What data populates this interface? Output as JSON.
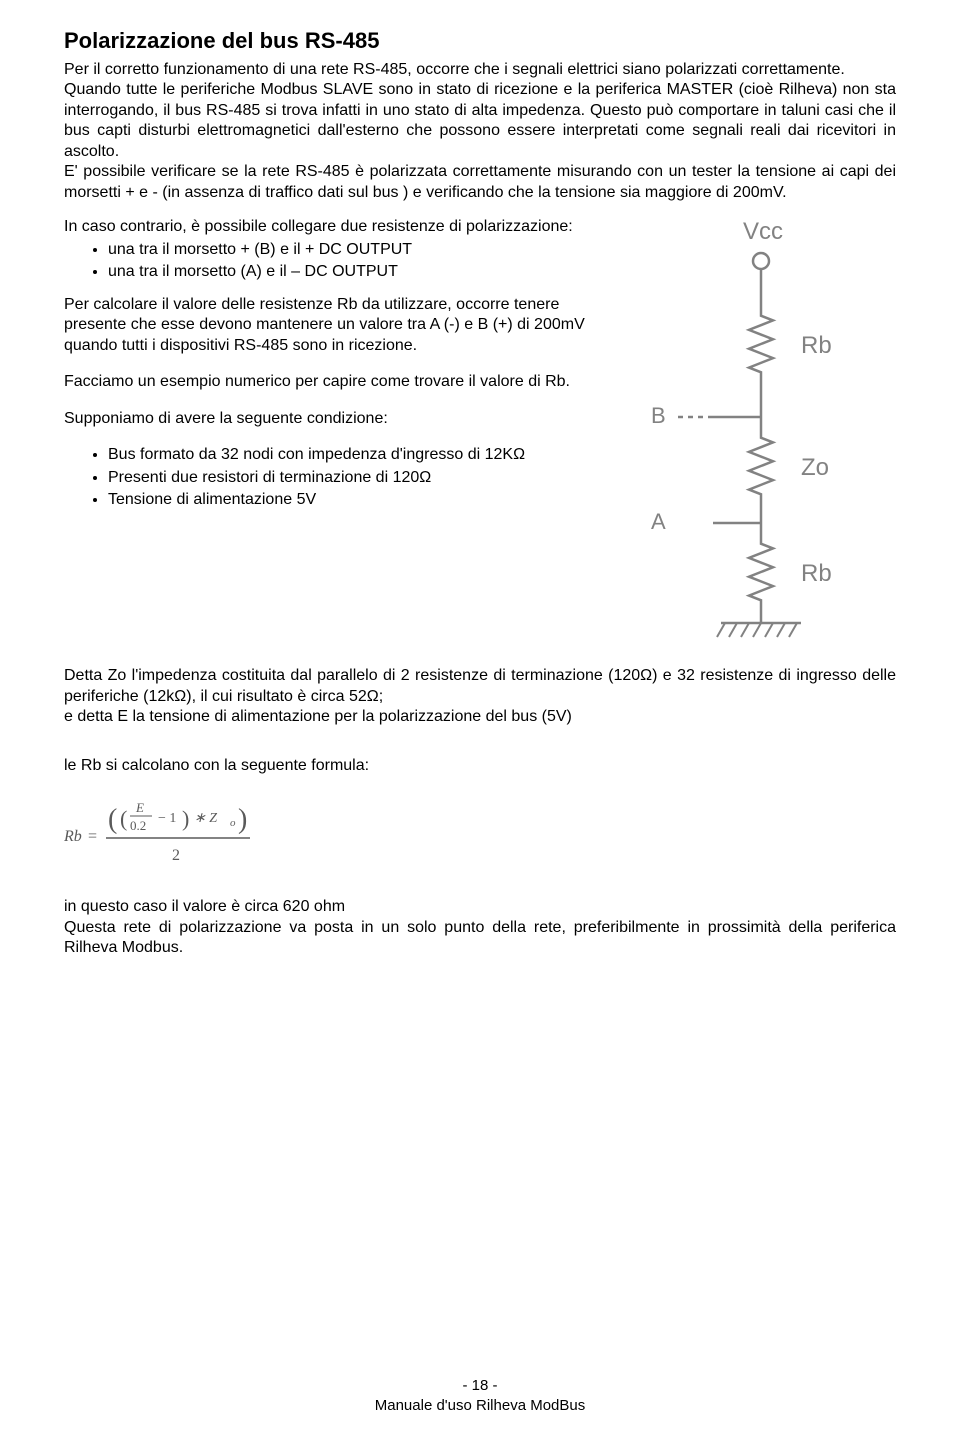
{
  "title": "Polarizzazione del bus RS-485",
  "para1": "Per il corretto funzionamento di una rete RS-485, occorre che i segnali elettrici siano polarizzati correttamente.",
  "para2": "Quando tutte le periferiche Modbus SLAVE sono in stato di ricezione e la periferica MASTER (cioè Rilheva) non sta interrogando, il bus RS-485 si trova infatti in uno stato di alta impedenza. Questo può comportare in taluni casi che il bus capti disturbi elettromagnetici dall'esterno che possono essere interpretati come segnali reali dai ricevitori in ascolto.",
  "para3": "E' possibile verificare se la rete RS-485 è polarizzata correttamente misurando con un tester la tensione ai capi dei morsetti + e -  (in assenza di traffico dati sul bus ) e verificando che la tensione sia maggiore di 200mV.",
  "left": {
    "intro": "In caso contrario, è possibile collegare due resistenze di polarizzazione:",
    "b1": "una tra il morsetto + (B) e il + DC OUTPUT",
    "b2": "una tra il morsetto (A) e il – DC OUTPUT",
    "calc": "Per calcolare il valore delle resistenze Rb da utilizzare, occorre tenere presente che esse devono mantenere un valore tra A (-) e B (+) di 200mV quando tutti i dispositivi RS-485 sono in ricezione.",
    "example": "Facciamo un esempio numerico per capire come trovare il valore di Rb.",
    "suppose": "Supponiamo di avere la seguente condizione:",
    "c1": "Bus formato da 32 nodi con impedenza d'ingresso di 12KΩ",
    "c2": "Presenti due resistori di terminazione di 120Ω",
    "c3": "Tensione di alimentazione 5V"
  },
  "diagram": {
    "vcc": "Vcc",
    "rb": "Rb",
    "zo": "Zo",
    "b": "B",
    "a": "A",
    "stroke": "#828282",
    "fill": "#828282",
    "fontsize": 22
  },
  "zo_para1": "Detta Zo l'impedenza costituita dal parallelo di 2 resistenze di terminazione (120Ω) e 32 resistenze di ingresso delle periferiche (12kΩ), il cui risultato è circa 52Ω;",
  "zo_para2": "e detta E la tensione di alimentazione per la polarizzazione del bus (5V)",
  "formula_intro": "le Rb si calcolano con la seguente formula:",
  "formula": {
    "lhs": "Rb =",
    "e": "E",
    "p02": "0.2",
    "minus1": "− 1",
    "mulzo": "∗  Z",
    "o": "o",
    "denom": "2",
    "stroke": "#5a5a5a"
  },
  "conc1": "in questo caso il valore è circa 620 ohm",
  "conc2": "Questa rete di polarizzazione va posta in un solo punto della rete, preferibilmente in prossimità della periferica Rilheva Modbus.",
  "footer": {
    "page": "- 18 -",
    "manual": "Manuale d'uso Rilheva ModBus"
  }
}
